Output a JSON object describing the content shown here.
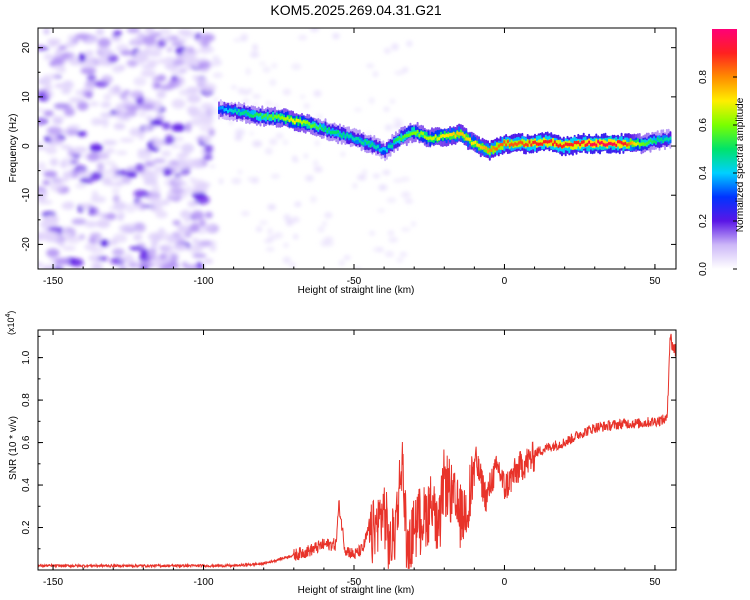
{
  "chart_data": [
    {
      "type": "heatmap",
      "title": "KOM5.2025.269.04.31.G21",
      "xlabel": "Height of straight line (km)",
      "ylabel": "Frequency (Hz)",
      "xlim": [
        -155,
        57
      ],
      "ylim": [
        -25,
        24
      ],
      "xticks": [
        -150,
        -100,
        -50,
        0,
        50
      ],
      "yticks": [
        -20,
        -10,
        0,
        10,
        20
      ],
      "grid": false,
      "colorbar": {
        "label": "Normalized spectral amplitude",
        "range": [
          0,
          1
        ],
        "ticks": [
          "0.0",
          "0.2",
          "0.4",
          "0.6",
          "0.8"
        ],
        "colormap": [
          "#ffffff",
          "#cdb8f8",
          "#5a16e6",
          "#0033ff",
          "#00d0ff",
          "#00e36a",
          "#7aff00",
          "#ffee00",
          "#ff8c00",
          "#ff2020",
          "#ff0077"
        ]
      },
      "ridge": {
        "x": [
          -95,
          -90,
          -85,
          -80,
          -75,
          -70,
          -65,
          -60,
          -55,
          -50,
          -45,
          -40,
          -35,
          -30,
          -25,
          -20,
          -15,
          -10,
          -5,
          0,
          5,
          10,
          15,
          20,
          25,
          30,
          35,
          40,
          45,
          50,
          55
        ],
        "y": [
          7.5,
          7.2,
          6.5,
          6.0,
          5.8,
          5.2,
          4.5,
          3.5,
          2.5,
          1.5,
          0.5,
          -1.0,
          1.5,
          3.0,
          1.5,
          2.0,
          2.5,
          0.5,
          -1.0,
          0.5,
          0.5,
          0.5,
          0.8,
          0.0,
          0.5,
          0.5,
          0.5,
          0.5,
          0.5,
          1.0,
          1.5
        ],
        "amplitude": [
          0.35,
          0.45,
          0.5,
          0.55,
          0.6,
          0.7,
          0.6,
          0.5,
          0.5,
          0.45,
          0.5,
          0.4,
          0.55,
          0.6,
          0.65,
          0.7,
          0.75,
          0.7,
          0.8,
          0.85,
          0.85,
          0.9,
          0.9,
          0.9,
          0.9,
          0.95,
          0.95,
          0.9,
          0.6,
          0.5,
          0.45
        ]
      }
    },
    {
      "type": "line",
      "xlabel": "Height of straight line (km)",
      "ylabel": "SNR (10 * v/v)",
      "y_multiplier": "(x10",
      "y_multiplier_exp": "4",
      "y_multiplier_close": ")",
      "xlim": [
        -155,
        57
      ],
      "ylim": [
        0,
        1.13
      ],
      "xticks": [
        -150,
        -100,
        -50,
        0,
        50
      ],
      "yticks": [
        "0.2",
        "0.4",
        "0.6",
        "0.8",
        "1.0"
      ],
      "line_color": "#e8332a",
      "grid": false,
      "series": [
        {
          "x": [
            -155,
            -140,
            -120,
            -100,
            -90,
            -80,
            -75,
            -70,
            -65,
            -60,
            -56,
            -55,
            -53,
            -50,
            -47,
            -45,
            -42,
            -40,
            -38,
            -36,
            -34,
            -32,
            -30,
            -28,
            -26,
            -24,
            -22,
            -20,
            -18,
            -16,
            -14,
            -12,
            -10,
            -8,
            -6,
            -4,
            -2,
            0,
            5,
            10,
            15,
            20,
            25,
            30,
            35,
            40,
            45,
            50,
            54,
            54.5,
            55,
            56,
            57
          ],
          "y": [
            0.02,
            0.02,
            0.02,
            0.02,
            0.02,
            0.03,
            0.05,
            0.07,
            0.09,
            0.12,
            0.12,
            0.31,
            0.1,
            0.07,
            0.1,
            0.2,
            0.28,
            0.35,
            0.15,
            0.3,
            0.57,
            0.1,
            0.28,
            0.3,
            0.32,
            0.4,
            0.2,
            0.5,
            0.42,
            0.35,
            0.3,
            0.38,
            0.55,
            0.45,
            0.35,
            0.45,
            0.5,
            0.4,
            0.5,
            0.55,
            0.58,
            0.6,
            0.64,
            0.67,
            0.68,
            0.69,
            0.69,
            0.7,
            0.71,
            0.9,
            1.1,
            1.05,
            1.03
          ]
        }
      ]
    }
  ]
}
